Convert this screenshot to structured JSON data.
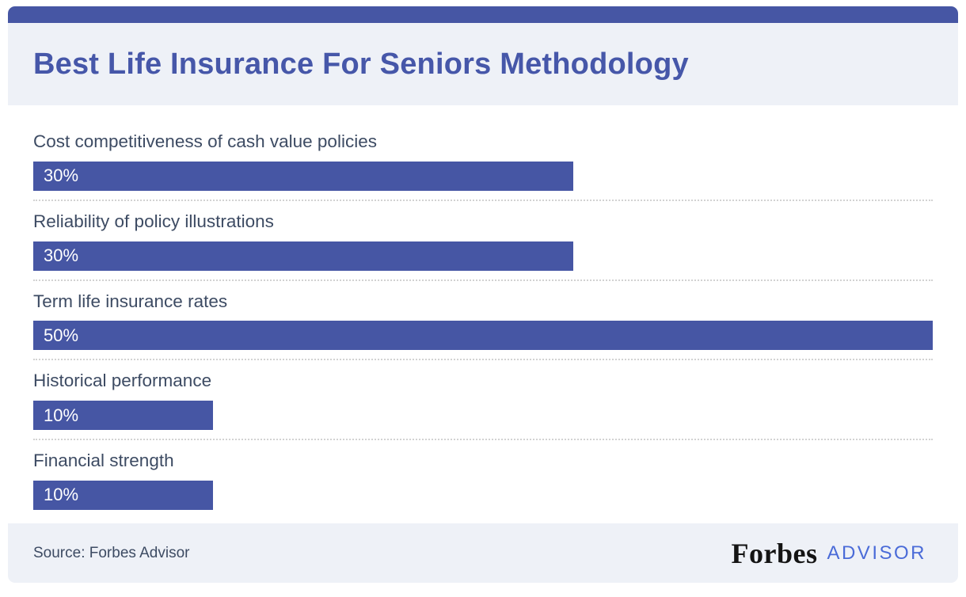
{
  "page": {
    "title": "Best Life Insurance For Seniors Methodology"
  },
  "chart_data": {
    "type": "bar",
    "orientation": "horizontal",
    "title": "Best Life Insurance For Seniors Methodology",
    "categories": [
      "Cost competitiveness of cash value policies",
      "Reliability of policy illustrations",
      "Term life insurance rates",
      "Historical performance",
      "Financial strength"
    ],
    "values": [
      30,
      30,
      50,
      10,
      10
    ],
    "value_labels": [
      "30%",
      "30%",
      "50%",
      "10%",
      "10%"
    ],
    "xlim": [
      0,
      50
    ],
    "bar_color": "#4656a4",
    "grid": false,
    "legend": false
  },
  "footer": {
    "source": "Source: Forbes Advisor",
    "logo_brand": "Forbes",
    "logo_suffix": "ADVISOR"
  },
  "colors": {
    "accent_blue": "#4656a4",
    "title_blue": "#4657a9",
    "label_slate": "#3d4b63",
    "panel_bg": "#eef1f7",
    "advisor_blue": "#4a6bd8"
  }
}
